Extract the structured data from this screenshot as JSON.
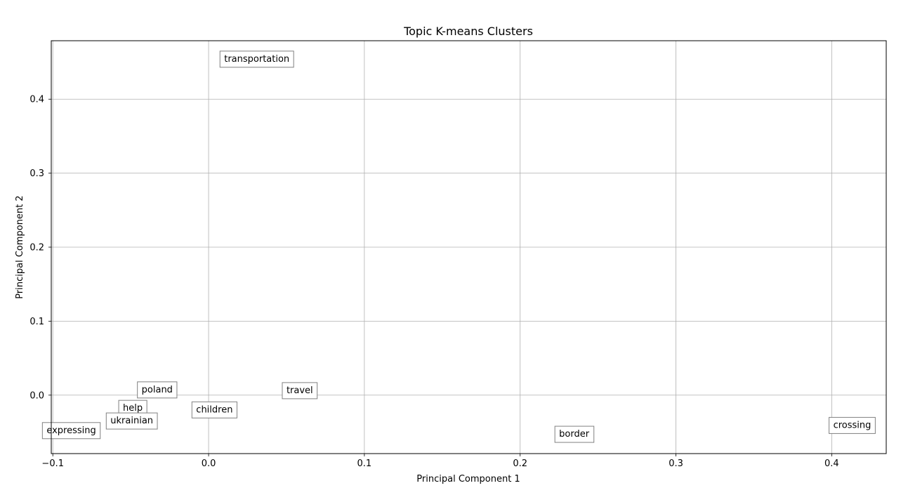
{
  "chart_data": {
    "type": "scatter",
    "title": "Topic K-means Clusters",
    "xlabel": "Principal Component 1",
    "ylabel": "Principal Component 2",
    "xlim": [
      -0.101,
      0.435
    ],
    "ylim": [
      -0.079,
      0.479
    ],
    "grid": true,
    "xticks": [
      -0.1,
      0.0,
      0.1,
      0.2,
      0.3,
      0.4
    ],
    "xtick_labels": [
      "−0.1",
      "0.0",
      "0.1",
      "0.2",
      "0.3",
      "0.4"
    ],
    "yticks": [
      0.0,
      0.1,
      0.2,
      0.3,
      0.4
    ],
    "ytick_labels": [
      "0.0",
      "0.1",
      "0.2",
      "0.3",
      "0.4"
    ],
    "points": [
      {
        "label": "transportation",
        "x": 0.01,
        "y": 0.455
      },
      {
        "label": "poland",
        "x": -0.043,
        "y": 0.008
      },
      {
        "label": "travel",
        "x": 0.05,
        "y": 0.007
      },
      {
        "label": "help",
        "x": -0.055,
        "y": -0.017
      },
      {
        "label": "children",
        "x": -0.008,
        "y": -0.019
      },
      {
        "label": "ukrainian",
        "x": -0.063,
        "y": -0.034
      },
      {
        "label": "expressing",
        "x": -0.104,
        "y": -0.047
      },
      {
        "label": "border",
        "x": 0.225,
        "y": -0.052
      },
      {
        "label": "crossing",
        "x": 0.401,
        "y": -0.04
      }
    ]
  }
}
